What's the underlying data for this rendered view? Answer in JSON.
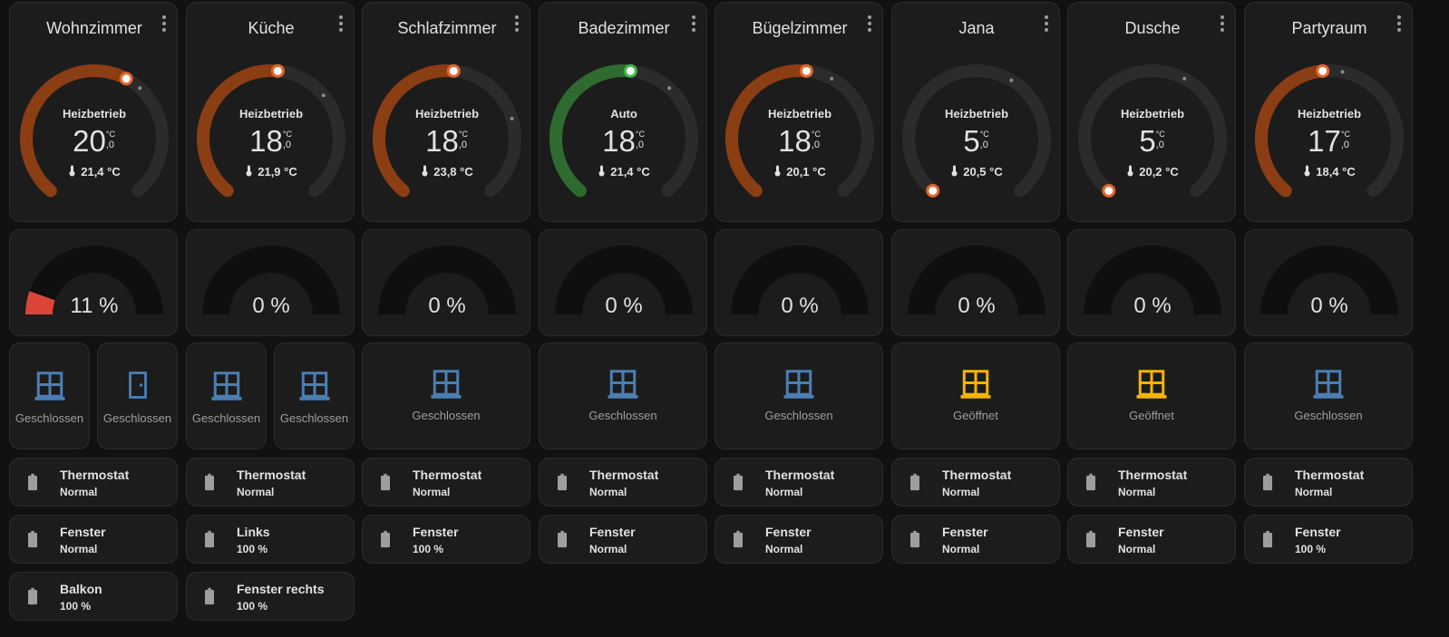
{
  "colors": {
    "heat": "#8b3d13",
    "auto": "#2e6b2f",
    "track": "#2b2b2b",
    "handle": "#e2652a",
    "handle_auto": "#43b848",
    "gauge_bg": "#0f0f0f",
    "gauge_fill": "#db4437",
    "window_closed": "#4a7fb3",
    "window_open": "#f4b400",
    "battery": "#9e9e9e"
  },
  "rooms": [
    {
      "name": "Wohnzimmer",
      "mode": "Heizbetrieb",
      "setpoint_int": "20",
      "setpoint_dec": ",0",
      "unit": "°C",
      "current": "21,4 °C",
      "ring": "heat",
      "setpoint_fraction": 0.6,
      "current_fraction": 0.65,
      "gauge": {
        "value": 11,
        "label": "11 %"
      },
      "sensors": [
        {
          "icon": "window-icon",
          "state": "Geschlossen",
          "open": false
        },
        {
          "icon": "door-icon",
          "state": "Geschlossen",
          "open": false
        }
      ],
      "batteries": [
        {
          "name": "Thermostat",
          "state": "Normal"
        },
        {
          "name": "Fenster",
          "state": "Normal"
        },
        {
          "name": "Balkon",
          "state": "100 %"
        }
      ]
    },
    {
      "name": "Küche",
      "mode": "Heizbetrieb",
      "setpoint_int": "18",
      "setpoint_dec": ",0",
      "unit": "°C",
      "current": "21,9 °C",
      "ring": "heat",
      "setpoint_fraction": 0.52,
      "current_fraction": 0.68,
      "gauge": {
        "value": 0,
        "label": "0 %"
      },
      "sensors": [
        {
          "icon": "window-icon",
          "state": "Geschlossen",
          "open": false
        },
        {
          "icon": "window-icon",
          "state": "Geschlossen",
          "open": false
        }
      ],
      "batteries": [
        {
          "name": "Thermostat",
          "state": "Normal"
        },
        {
          "name": "Links",
          "state": "100 %"
        },
        {
          "name": "Fenster rechts",
          "state": "100 %"
        }
      ]
    },
    {
      "name": "Schlafzimmer",
      "mode": "Heizbetrieb",
      "setpoint_int": "18",
      "setpoint_dec": ",0",
      "unit": "°C",
      "current": "23,8 °C",
      "ring": "heat",
      "setpoint_fraction": 0.52,
      "current_fraction": 0.76,
      "gauge": {
        "value": 0,
        "label": "0 %"
      },
      "sensors": [
        {
          "icon": "window-icon",
          "state": "Geschlossen",
          "open": false
        }
      ],
      "batteries": [
        {
          "name": "Thermostat",
          "state": "Normal"
        },
        {
          "name": "Fenster",
          "state": "100 %"
        }
      ]
    },
    {
      "name": "Badezimmer",
      "mode": "Auto",
      "setpoint_int": "18",
      "setpoint_dec": ",0",
      "unit": "°C",
      "current": "21,4 °C",
      "ring": "auto",
      "setpoint_fraction": 0.52,
      "current_fraction": 0.65,
      "gauge": {
        "value": 0,
        "label": "0 %"
      },
      "sensors": [
        {
          "icon": "window-icon",
          "state": "Geschlossen",
          "open": false
        }
      ],
      "batteries": [
        {
          "name": "Thermostat",
          "state": "Normal"
        },
        {
          "name": "Fenster",
          "state": "Normal"
        }
      ]
    },
    {
      "name": "Bügelzimmer",
      "mode": "Heizbetrieb",
      "setpoint_int": "18",
      "setpoint_dec": ",0",
      "unit": "°C",
      "current": "20,1 °C",
      "ring": "heat",
      "setpoint_fraction": 0.52,
      "current_fraction": 0.6,
      "gauge": {
        "value": 0,
        "label": "0 %"
      },
      "sensors": [
        {
          "icon": "window-icon",
          "state": "Geschlossen",
          "open": false
        }
      ],
      "batteries": [
        {
          "name": "Thermostat",
          "state": "Normal"
        },
        {
          "name": "Fenster",
          "state": "Normal"
        }
      ]
    },
    {
      "name": "Jana",
      "mode": "Heizbetrieb",
      "setpoint_int": "5",
      "setpoint_dec": ",0",
      "unit": "°C",
      "current": "20,5 °C",
      "ring": "heat",
      "setpoint_fraction": 0.0,
      "current_fraction": 0.61,
      "gauge": {
        "value": 0,
        "label": "0 %"
      },
      "sensors": [
        {
          "icon": "window-icon",
          "state": "Geöffnet",
          "open": true
        }
      ],
      "batteries": [
        {
          "name": "Thermostat",
          "state": "Normal"
        },
        {
          "name": "Fenster",
          "state": "Normal"
        }
      ]
    },
    {
      "name": "Dusche",
      "mode": "Heizbetrieb",
      "setpoint_int": "5",
      "setpoint_dec": ",0",
      "unit": "°C",
      "current": "20,2 °C",
      "ring": "heat",
      "setpoint_fraction": 0.0,
      "current_fraction": 0.6,
      "gauge": {
        "value": 0,
        "label": "0 %"
      },
      "sensors": [
        {
          "icon": "window-icon",
          "state": "Geöffnet",
          "open": true
        }
      ],
      "batteries": [
        {
          "name": "Thermostat",
          "state": "Normal"
        },
        {
          "name": "Fenster",
          "state": "Normal"
        }
      ]
    },
    {
      "name": "Partyraum",
      "mode": "Heizbetrieb",
      "setpoint_int": "17",
      "setpoint_dec": ",0",
      "unit": "°C",
      "current": "18,4 °C",
      "ring": "heat",
      "setpoint_fraction": 0.48,
      "current_fraction": 0.54,
      "gauge": {
        "value": 0,
        "label": "0 %"
      },
      "sensors": [
        {
          "icon": "window-icon",
          "state": "Geschlossen",
          "open": false
        }
      ],
      "batteries": [
        {
          "name": "Thermostat",
          "state": "Normal"
        },
        {
          "name": "Fenster",
          "state": "100 %"
        }
      ]
    }
  ]
}
